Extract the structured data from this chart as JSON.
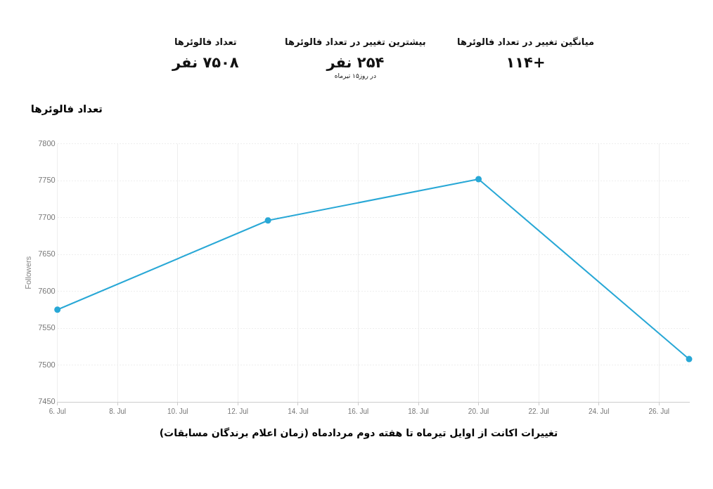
{
  "chart_data": {
    "type": "line",
    "title": "تعداد فالوئرها",
    "ylabel": "Followers",
    "x": [
      "--07-06",
      "--07-13",
      "--07-20",
      "--07-27"
    ],
    "series": [
      {
        "color": "#29a8d6",
        "values": [
          7575,
          7696,
          7752,
          7508
        ]
      }
    ],
    "xlim": [
      "--07-06",
      "--07-27"
    ],
    "xticks": [
      {
        "value": "--07-06",
        "label": "6. Jul"
      },
      {
        "value": "--07-08",
        "label": "8. Jul"
      },
      {
        "value": "--07-10",
        "label": "10. Jul"
      },
      {
        "value": "--07-12",
        "label": "12. Jul"
      },
      {
        "value": "--07-14",
        "label": "14. Jul"
      },
      {
        "value": "--07-16",
        "label": "16. Jul"
      },
      {
        "value": "--07-18",
        "label": "18. Jul"
      },
      {
        "value": "--07-20",
        "label": "20. Jul"
      },
      {
        "value": "--07-22",
        "label": "22. Jul"
      },
      {
        "value": "--07-24",
        "label": "24. Jul"
      },
      {
        "value": "--07-26",
        "label": "26. Jul"
      }
    ],
    "ylim": [
      7450,
      7800
    ],
    "yticks": [
      7450,
      7500,
      7550,
      7600,
      7650,
      7700,
      7750,
      7800
    ],
    "grid": true,
    "legend": false,
    "marker": "circle",
    "line_style": "solid",
    "annotations": [
      "تعداد فالوئرها",
      "۷۵۰۸ نفر",
      "بیشترین تغییر در تعداد فالوئرها",
      "۲۵۴ نفر",
      "در روز۱۵ تیرماه",
      "میانگین تغییر در تعداد فالوئرها",
      "+۱۱۴",
      "تغییرات اکانت از اوایل تیرماه تا هفته دوم مردادماه (زمان اعلام برندگان مسابقات)"
    ]
  }
}
